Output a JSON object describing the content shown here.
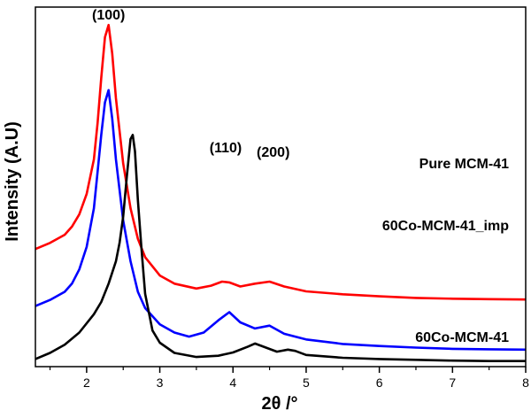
{
  "chart_data": {
    "type": "line",
    "xlabel": "2θ /°",
    "ylabel": "Intensity (A.U)",
    "xlim": [
      1.3,
      8
    ],
    "xticks": [
      "2",
      "3",
      "4",
      "5",
      "6",
      "7",
      "8"
    ],
    "grid": false,
    "legend": "inline labels at right end of each curve",
    "annotations": [
      {
        "text": "(100)",
        "x": 2.3
      },
      {
        "text": "(110)",
        "x": 3.9
      },
      {
        "text": "(200)",
        "x": 4.55
      }
    ],
    "series": [
      {
        "name": "Pure MCM-41",
        "color": "#ff0000",
        "x": [
          1.3,
          1.5,
          1.7,
          1.8,
          1.9,
          2.0,
          2.1,
          2.15,
          2.2,
          2.25,
          2.3,
          2.35,
          2.4,
          2.5,
          2.6,
          2.7,
          2.8,
          3.0,
          3.2,
          3.5,
          3.7,
          3.85,
          3.95,
          4.1,
          4.3,
          4.5,
          4.7,
          5.0,
          5.5,
          6.0,
          6.5,
          7.0,
          7.5,
          8.0
        ],
        "values": [
          2.8,
          2.95,
          3.15,
          3.35,
          3.65,
          4.15,
          5.0,
          5.9,
          7.0,
          8.0,
          8.3,
          7.6,
          6.5,
          4.9,
          3.8,
          3.05,
          2.6,
          2.15,
          1.95,
          1.83,
          1.9,
          2.0,
          1.98,
          1.88,
          1.95,
          2.0,
          1.88,
          1.76,
          1.69,
          1.64,
          1.6,
          1.58,
          1.57,
          1.56
        ]
      },
      {
        "name": "60Co-MCM-41_imp",
        "color": "#0000ff",
        "x": [
          1.3,
          1.5,
          1.7,
          1.8,
          1.9,
          2.0,
          2.1,
          2.15,
          2.2,
          2.25,
          2.3,
          2.35,
          2.4,
          2.5,
          2.6,
          2.7,
          2.8,
          3.0,
          3.2,
          3.4,
          3.6,
          3.8,
          3.95,
          4.1,
          4.3,
          4.5,
          4.7,
          5.0,
          5.5,
          6.0,
          6.5,
          7.0,
          7.5,
          8.0
        ],
        "values": [
          1.4,
          1.55,
          1.75,
          1.95,
          2.3,
          2.85,
          3.8,
          4.7,
          5.6,
          6.4,
          6.7,
          6.0,
          5.0,
          3.5,
          2.5,
          1.75,
          1.35,
          0.95,
          0.75,
          0.65,
          0.75,
          1.05,
          1.25,
          1.0,
          0.85,
          0.92,
          0.72,
          0.58,
          0.47,
          0.42,
          0.38,
          0.35,
          0.34,
          0.33
        ]
      },
      {
        "name": "60Co-MCM-41",
        "color": "#000000",
        "x": [
          1.3,
          1.5,
          1.7,
          1.9,
          2.1,
          2.2,
          2.3,
          2.4,
          2.45,
          2.5,
          2.55,
          2.6,
          2.63,
          2.66,
          2.7,
          2.75,
          2.8,
          2.9,
          3.0,
          3.2,
          3.5,
          3.8,
          4.0,
          4.2,
          4.3,
          4.45,
          4.6,
          4.75,
          4.85,
          5.0,
          5.5,
          6.0,
          6.5,
          7.0,
          7.5,
          8.0
        ],
        "values": [
          0.1,
          0.25,
          0.45,
          0.75,
          1.2,
          1.5,
          1.95,
          2.5,
          2.95,
          3.6,
          4.6,
          5.5,
          5.6,
          5.2,
          4.0,
          2.8,
          1.7,
          0.8,
          0.5,
          0.25,
          0.15,
          0.18,
          0.26,
          0.4,
          0.48,
          0.38,
          0.28,
          0.33,
          0.3,
          0.2,
          0.13,
          0.1,
          0.08,
          0.06,
          0.05,
          0.05
        ]
      }
    ]
  }
}
